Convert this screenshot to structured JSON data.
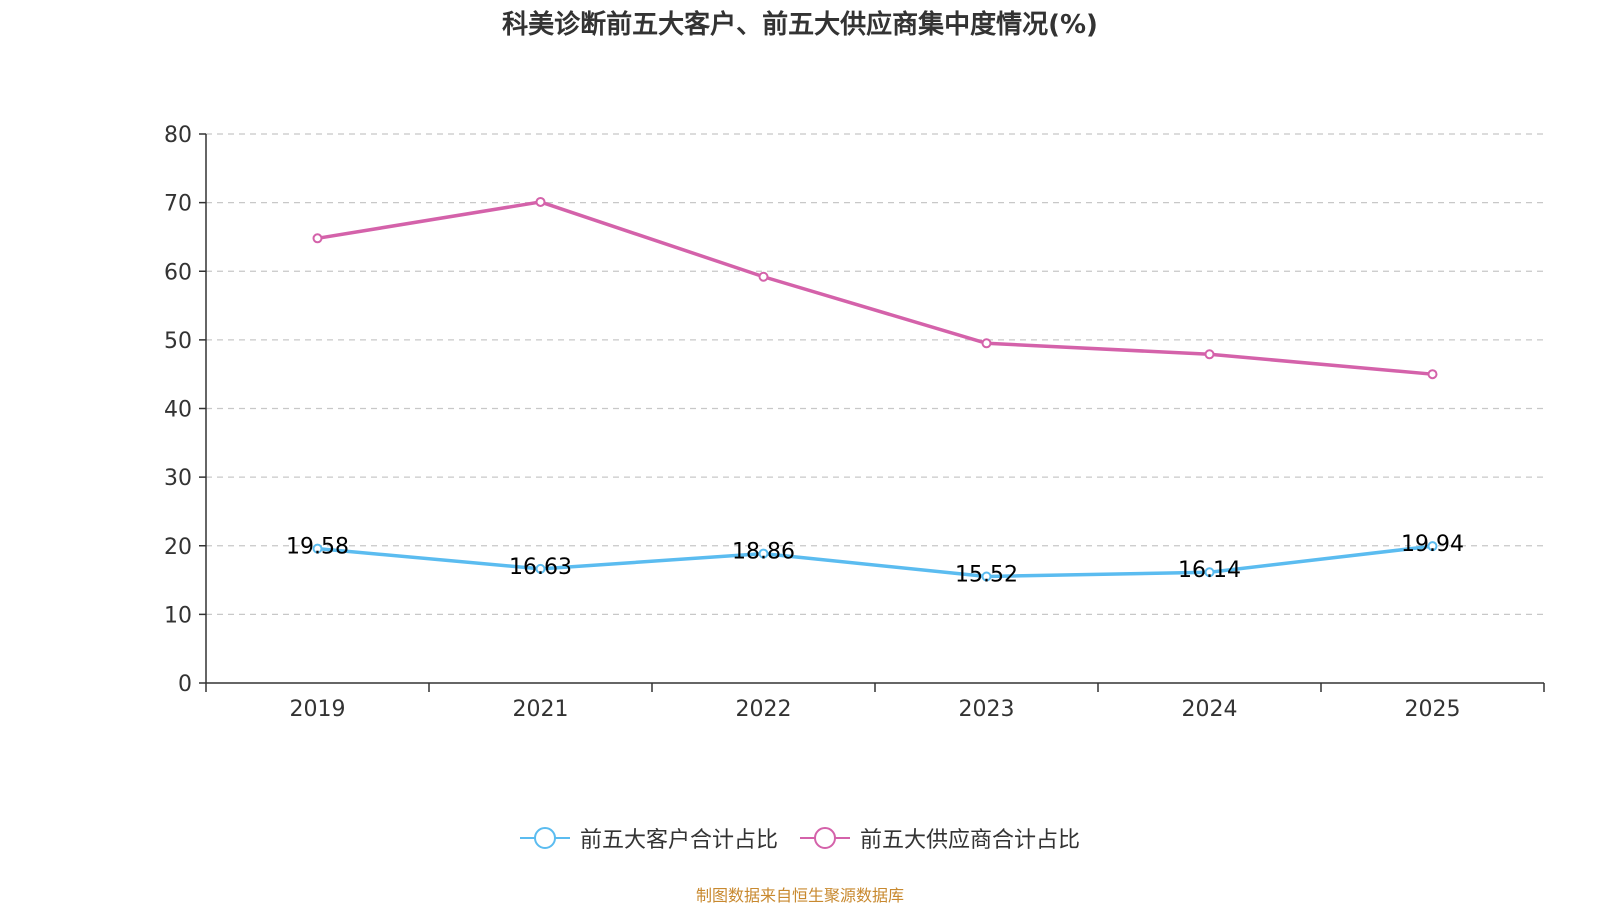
{
  "title": "科美诊断前五大客户、前五大供应商集中度情况(%)",
  "source_note": "制图数据来自恒生聚源数据库",
  "chart_data": {
    "type": "line",
    "title": "科美诊断前五大客户、前五大供应商集中度情况(%)",
    "categories": [
      "2019",
      "2021",
      "2022",
      "2023",
      "2024",
      "2025"
    ],
    "ylim": [
      0,
      80
    ],
    "yticks": [
      0,
      10,
      20,
      30,
      40,
      50,
      60,
      70,
      80
    ],
    "grid": true,
    "legend_position": "bottom",
    "series": [
      {
        "name": "前五大客户合计占比",
        "color": "#5bbcf0",
        "values": [
          19.58,
          16.63,
          18.86,
          15.52,
          16.14,
          19.94
        ],
        "labels": [
          "19.58",
          "16.63",
          "18.86",
          "15.52",
          "16.14",
          "19.94"
        ],
        "show_labels": true
      },
      {
        "name": "前五大供应商合计占比",
        "color": "#d462aa",
        "values": [
          64.8,
          70.1,
          59.2,
          49.5,
          47.9,
          45.0
        ],
        "show_labels": false
      }
    ]
  }
}
